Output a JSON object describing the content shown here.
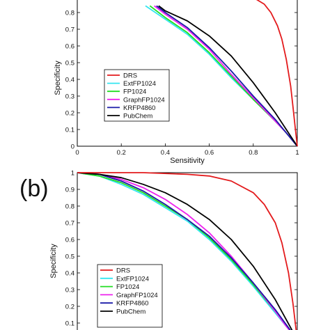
{
  "colors": {
    "DRS": "#e31a1c",
    "ExtFP1024": "#33e6f0",
    "FP1024": "#22dd22",
    "GraphFP1024": "#ee22ee",
    "KRFP4860": "#1a1aa8",
    "PubChem": "#000000"
  },
  "chart_data": [
    {
      "type": "line",
      "panel_label": "",
      "xlabel": "Sensitivity",
      "ylabel": "Specificity",
      "xlim": [
        0,
        1
      ],
      "ylim": [
        0,
        1
      ],
      "x_ticks": [
        "0",
        "0.2",
        "0.4",
        "0.6",
        "0.8",
        "1"
      ],
      "y_ticks": [
        "0",
        "0.1",
        "0.2",
        "0.3",
        "0.4",
        "0.5",
        "0.6",
        "0.7",
        "0.8"
      ],
      "legend": [
        "DRS",
        "ExtFP1024",
        "FP1024",
        "GraphFP1024",
        "KRFP4860",
        "PubChem"
      ],
      "legend_position": "lower-left",
      "series": [
        {
          "name": "DRS",
          "x": [
            0.8,
            0.85,
            0.88,
            0.91,
            0.93,
            0.95,
            0.97,
            0.98,
            0.99,
            1.0
          ],
          "y": [
            0.89,
            0.85,
            0.8,
            0.72,
            0.64,
            0.52,
            0.36,
            0.24,
            0.12,
            0.0
          ]
        },
        {
          "name": "ExtFP1024",
          "x": [
            0.31,
            0.4,
            0.5,
            0.6,
            0.7,
            0.8,
            0.9,
            0.95,
            1.0
          ],
          "y": [
            0.84,
            0.76,
            0.67,
            0.55,
            0.41,
            0.28,
            0.15,
            0.08,
            0.0
          ]
        },
        {
          "name": "FP1024",
          "x": [
            0.33,
            0.4,
            0.5,
            0.6,
            0.7,
            0.8,
            0.9,
            0.95,
            1.0
          ],
          "y": [
            0.84,
            0.77,
            0.68,
            0.56,
            0.42,
            0.28,
            0.15,
            0.08,
            0.0
          ]
        },
        {
          "name": "GraphFP1024",
          "x": [
            0.35,
            0.4,
            0.5,
            0.6,
            0.7,
            0.8,
            0.9,
            0.95,
            1.0
          ],
          "y": [
            0.84,
            0.79,
            0.7,
            0.58,
            0.43,
            0.29,
            0.15,
            0.08,
            0.0
          ]
        },
        {
          "name": "KRFP4860",
          "x": [
            0.36,
            0.4,
            0.5,
            0.6,
            0.7,
            0.8,
            0.9,
            0.95,
            1.0
          ],
          "y": [
            0.84,
            0.8,
            0.71,
            0.59,
            0.45,
            0.3,
            0.16,
            0.08,
            0.0
          ]
        },
        {
          "name": "PubChem",
          "x": [
            0.37,
            0.4,
            0.5,
            0.6,
            0.7,
            0.8,
            0.9,
            0.95,
            1.0
          ],
          "y": [
            0.84,
            0.81,
            0.75,
            0.66,
            0.54,
            0.38,
            0.2,
            0.1,
            0.0
          ]
        }
      ]
    },
    {
      "type": "line",
      "panel_label": "(b)",
      "xlabel": "",
      "ylabel": "Specificity",
      "xlim": [
        0,
        1
      ],
      "ylim": [
        0,
        1
      ],
      "y_ticks": [
        "0.1",
        "0.2",
        "0.3",
        "0.4",
        "0.5",
        "0.6",
        "0.7",
        "0.8",
        "0.9",
        "1"
      ],
      "legend": [
        "DRS",
        "ExtFP1024",
        "FP1024",
        "GraphFP1024",
        "KRFP4860",
        "PubChem"
      ],
      "legend_position": "lower-left",
      "series": [
        {
          "name": "DRS",
          "x": [
            0.0,
            0.3,
            0.5,
            0.6,
            0.7,
            0.8,
            0.85,
            0.9,
            0.93,
            0.96,
            0.98,
            1.0
          ],
          "y": [
            1.0,
            1.0,
            0.99,
            0.98,
            0.95,
            0.88,
            0.81,
            0.7,
            0.58,
            0.4,
            0.22,
            0.0
          ]
        },
        {
          "name": "ExtFP1024",
          "x": [
            0.0,
            0.1,
            0.2,
            0.3,
            0.4,
            0.5,
            0.6,
            0.7,
            0.8,
            0.9,
            0.95,
            1.0
          ],
          "y": [
            1.0,
            0.98,
            0.93,
            0.87,
            0.79,
            0.71,
            0.6,
            0.47,
            0.32,
            0.16,
            0.08,
            0.0
          ]
        },
        {
          "name": "FP1024",
          "x": [
            0.0,
            0.1,
            0.2,
            0.3,
            0.4,
            0.5,
            0.6,
            0.7,
            0.8,
            0.9,
            0.95,
            1.0
          ],
          "y": [
            1.0,
            0.98,
            0.94,
            0.88,
            0.8,
            0.72,
            0.61,
            0.48,
            0.33,
            0.17,
            0.09,
            0.0
          ]
        },
        {
          "name": "GraphFP1024",
          "x": [
            0.0,
            0.1,
            0.2,
            0.3,
            0.4,
            0.5,
            0.6,
            0.7,
            0.8,
            0.9,
            0.95,
            1.0
          ],
          "y": [
            1.0,
            0.99,
            0.96,
            0.91,
            0.84,
            0.75,
            0.64,
            0.5,
            0.34,
            0.17,
            0.08,
            0.0
          ]
        },
        {
          "name": "KRFP4860",
          "x": [
            0.0,
            0.1,
            0.2,
            0.3,
            0.4,
            0.5,
            0.6,
            0.7,
            0.8,
            0.9,
            0.95,
            1.0
          ],
          "y": [
            1.0,
            0.99,
            0.95,
            0.89,
            0.81,
            0.72,
            0.62,
            0.49,
            0.34,
            0.18,
            0.09,
            0.0
          ]
        },
        {
          "name": "PubChem",
          "x": [
            0.0,
            0.1,
            0.2,
            0.3,
            0.4,
            0.5,
            0.6,
            0.7,
            0.8,
            0.9,
            0.95,
            1.0
          ],
          "y": [
            1.0,
            0.99,
            0.97,
            0.93,
            0.88,
            0.81,
            0.72,
            0.6,
            0.44,
            0.24,
            0.12,
            0.0
          ]
        }
      ]
    }
  ]
}
